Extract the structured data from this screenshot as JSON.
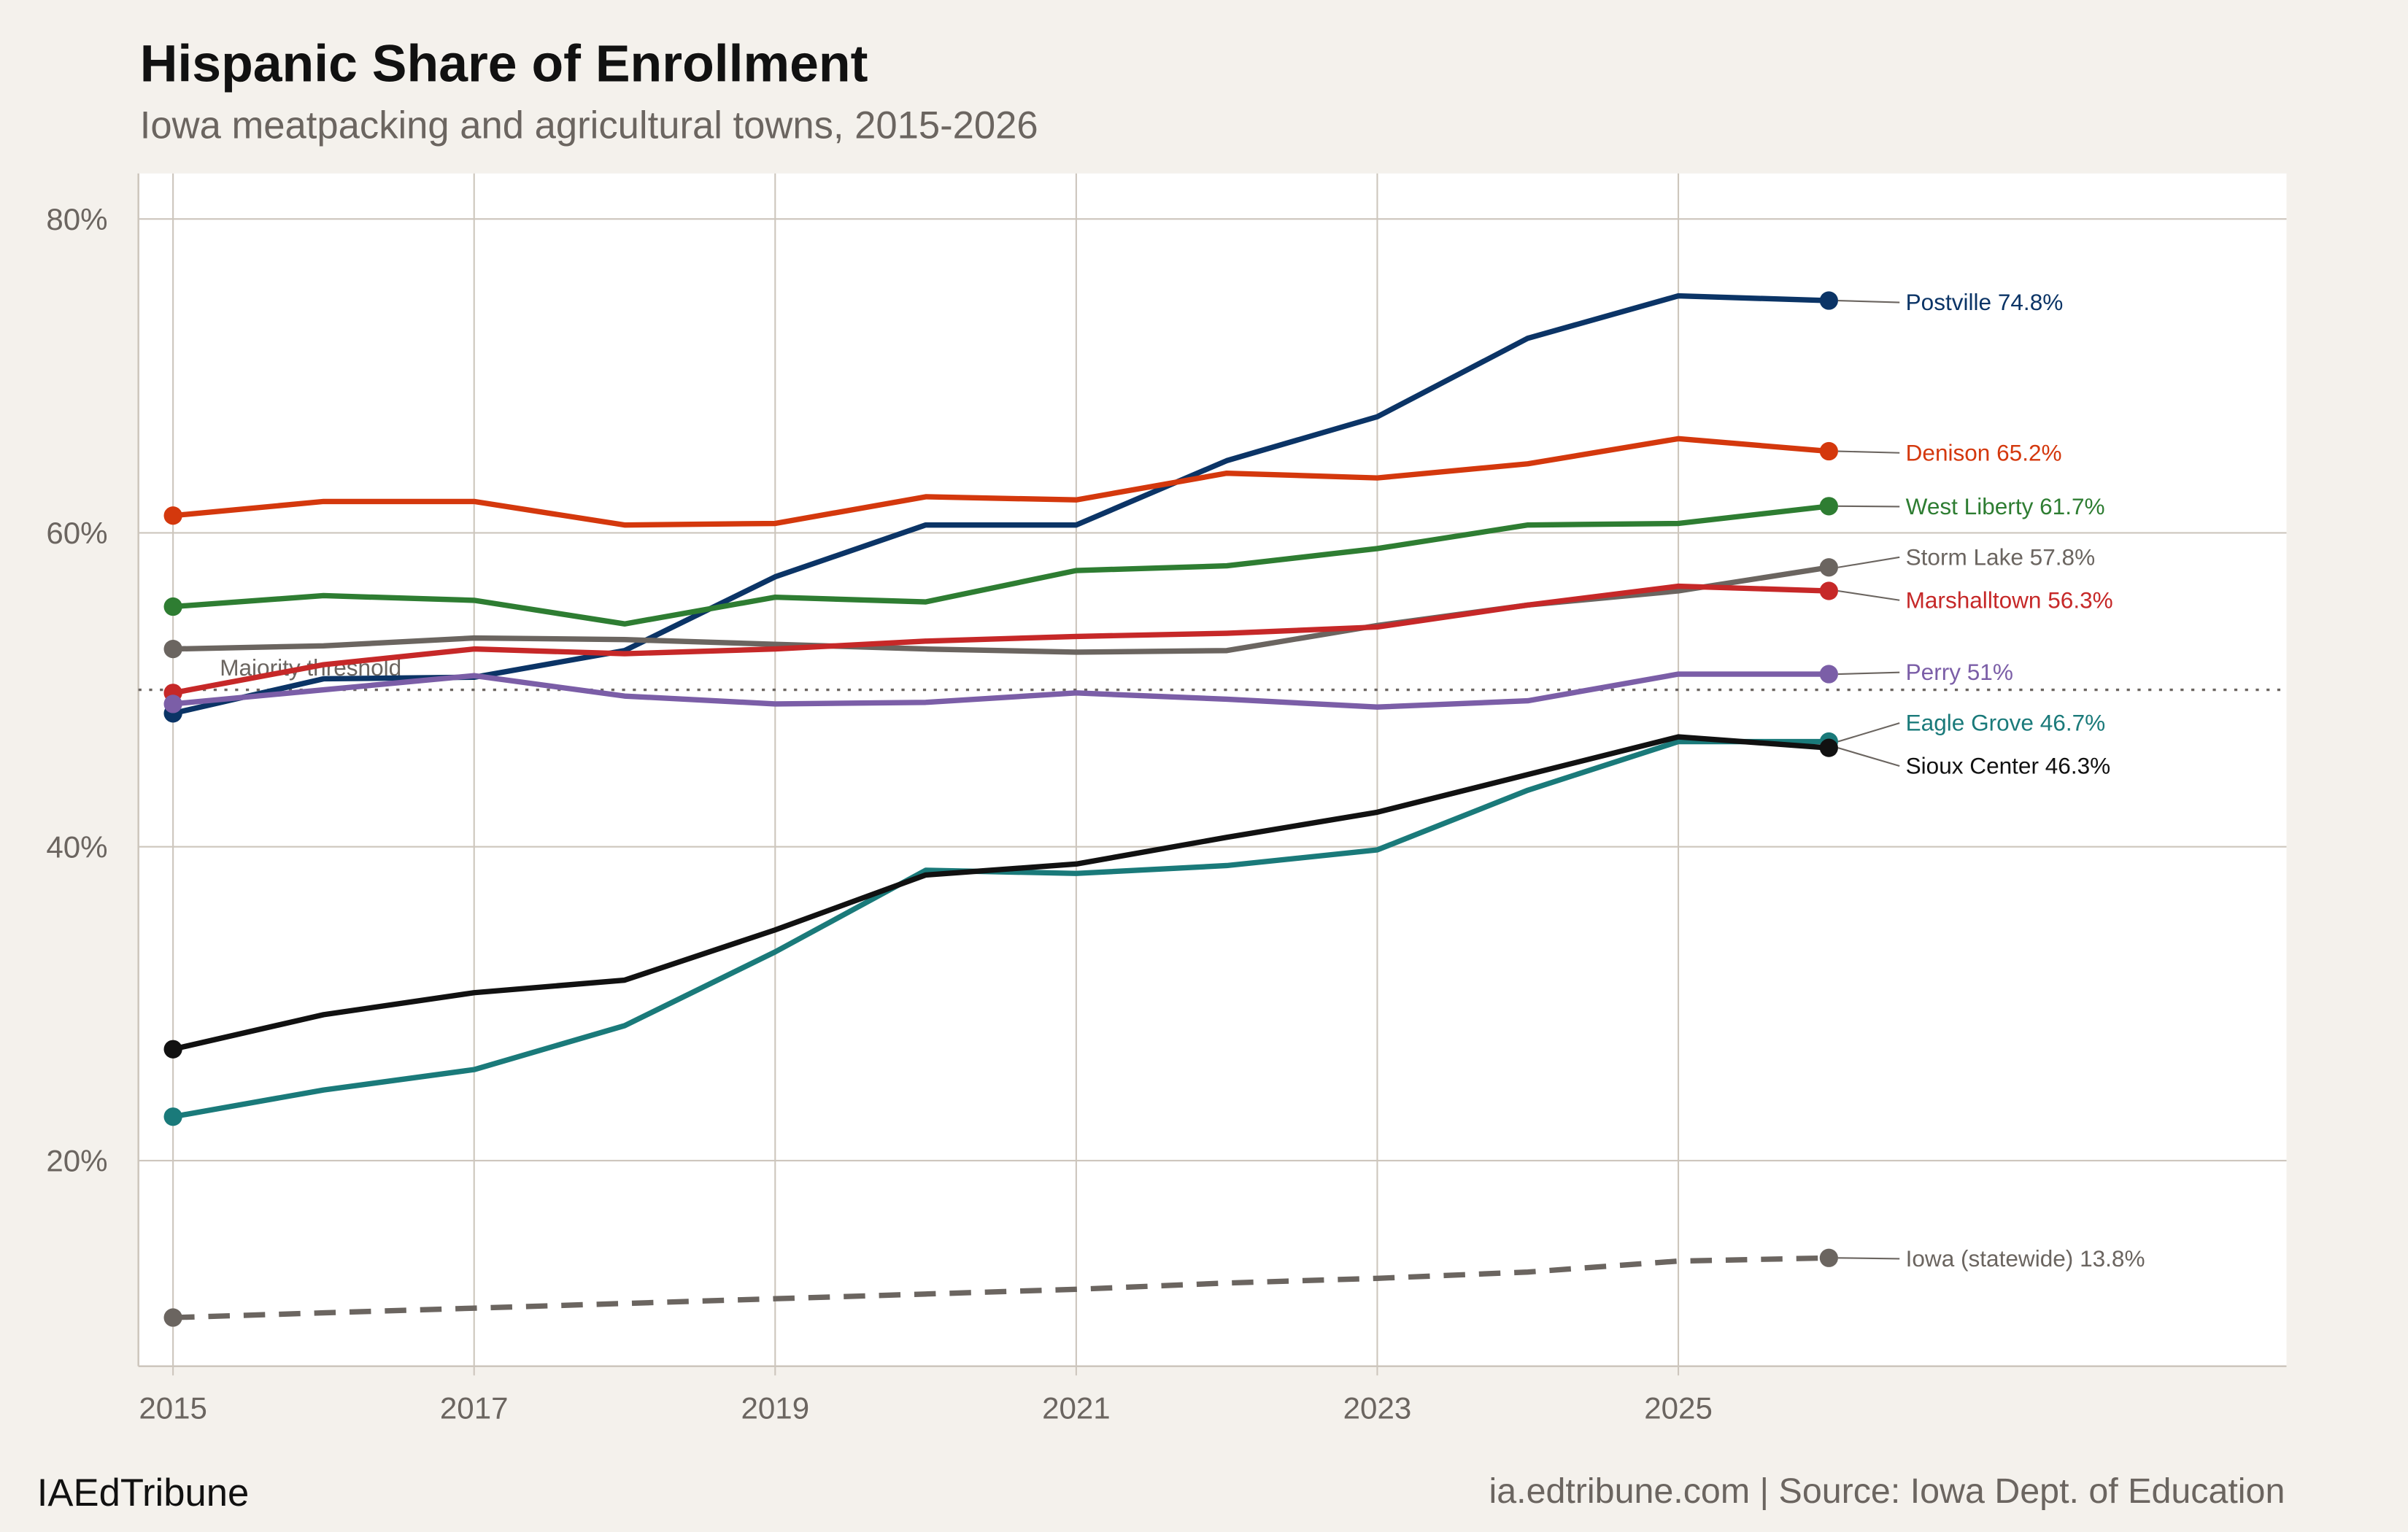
{
  "chart_data": {
    "type": "line",
    "title": "Hispanic Share of Enrollment",
    "subtitle": "Iowa meatpacking and agricultural towns, 2015-2026",
    "xlabel": "",
    "ylabel": "",
    "x": [
      2015,
      2016,
      2017,
      2018,
      2019,
      2020,
      2021,
      2022,
      2023,
      2024,
      2025,
      2026
    ],
    "xlim": [
      2014.77,
      2029.04
    ],
    "ylim": [
      6.9,
      82.9
    ],
    "x_ticks": [
      2015,
      2017,
      2019,
      2021,
      2023,
      2025
    ],
    "x_tick_labels": [
      "2015",
      "2017",
      "2019",
      "2021",
      "2023",
      "2025"
    ],
    "y_ticks": [
      20,
      40,
      60,
      80
    ],
    "y_tick_labels": [
      "20%",
      "40%",
      "60%",
      "80%"
    ],
    "grid": true,
    "reference_line": {
      "value": 50,
      "label": "Majority threshold"
    },
    "series": [
      {
        "name": "Postville",
        "label": "Postville 74.8%",
        "color": "#0b3466",
        "dashed": false,
        "values": [
          48.5,
          50.7,
          50.8,
          52.5,
          57.2,
          60.5,
          60.5,
          64.6,
          67.4,
          72.4,
          75.1,
          74.8
        ]
      },
      {
        "name": "Denison",
        "label": "Denison 65.2%",
        "color": "#d4380d",
        "dashed": false,
        "values": [
          61.1,
          62.0,
          62.0,
          60.5,
          60.6,
          62.3,
          62.1,
          63.8,
          63.5,
          64.4,
          66.0,
          65.2
        ]
      },
      {
        "name": "West Liberty",
        "label": "West Liberty 61.7%",
        "color": "#2e7d32",
        "dashed": false,
        "values": [
          55.3,
          56.0,
          55.7,
          54.2,
          55.9,
          55.6,
          57.6,
          57.9,
          59.0,
          60.5,
          60.6,
          61.7
        ]
      },
      {
        "name": "Storm Lake",
        "label": "Storm Lake 57.8%",
        "color": "#6b6560",
        "dashed": false,
        "values": [
          52.6,
          52.8,
          53.3,
          53.2,
          52.9,
          52.6,
          52.4,
          52.5,
          54.1,
          55.4,
          56.3,
          57.8
        ]
      },
      {
        "name": "Marshalltown",
        "label": "Marshalltown 56.3%",
        "color": "#c62828",
        "dashed": false,
        "values": [
          49.8,
          51.6,
          52.6,
          52.3,
          52.6,
          53.1,
          53.4,
          53.6,
          54.0,
          55.4,
          56.6,
          56.3
        ]
      },
      {
        "name": "Perry",
        "label": "Perry 51%",
        "color": "#7b5ea7",
        "dashed": false,
        "values": [
          49.1,
          50.0,
          50.9,
          49.6,
          49.1,
          49.2,
          49.8,
          49.4,
          48.9,
          49.3,
          51.0,
          51.0
        ]
      },
      {
        "name": "Eagle Grove",
        "label": "Eagle Grove 46.7%",
        "color": "#1a7a7a",
        "dashed": false,
        "values": [
          22.8,
          24.5,
          25.8,
          28.6,
          33.3,
          38.5,
          38.3,
          38.8,
          39.8,
          43.6,
          46.7,
          46.7
        ]
      },
      {
        "name": "Sioux Center",
        "label": "Sioux Center 46.3%",
        "color": "#111111",
        "dashed": false,
        "values": [
          27.1,
          29.3,
          30.7,
          31.5,
          34.7,
          38.2,
          38.9,
          40.6,
          42.2,
          44.6,
          47.0,
          46.3
        ]
      },
      {
        "name": "Iowa (statewide)",
        "label": "Iowa (statewide) 13.8%",
        "color": "#6b6560",
        "dashed": true,
        "values": [
          10.0,
          10.3,
          10.6,
          10.9,
          11.2,
          11.5,
          11.8,
          12.2,
          12.5,
          12.9,
          13.6,
          13.8
        ]
      }
    ]
  },
  "footer": {
    "brand": "IAEdTribune",
    "source": "ia.edtribune.com | Source: Iowa Dept. of Education"
  }
}
